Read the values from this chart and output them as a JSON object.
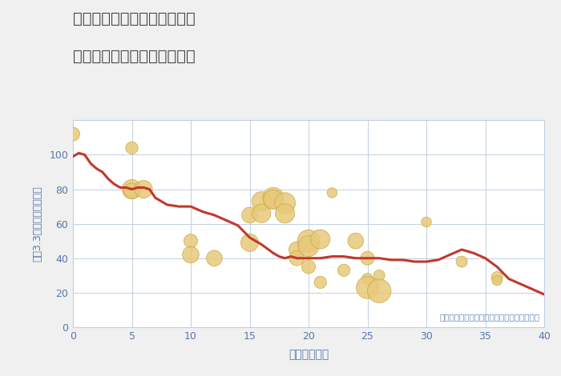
{
  "title_line1": "福岡県久留米市山川沓形町の",
  "title_line2": "築年数別中古マンション価格",
  "xlabel": "築年数（年）",
  "ylabel": "坪（3.3㎡）単価（万円）",
  "annotation": "円の大きさは、取引のあった物件面積を示す",
  "xlim": [
    0,
    40
  ],
  "ylim": [
    0,
    120
  ],
  "yticks": [
    0,
    20,
    40,
    60,
    80,
    100
  ],
  "xticks": [
    0,
    5,
    10,
    15,
    20,
    25,
    30,
    35,
    40
  ],
  "bg_color": "#f0f0f0",
  "plot_bg_color": "#ffffff",
  "grid_color": "#c0cfe0",
  "line_color": "#c0392b",
  "scatter_color": "#e8c97a",
  "scatter_edge_color": "#c8a840",
  "title_color": "#444444",
  "label_color": "#5577aa",
  "annotation_color": "#6688bb",
  "line_x": [
    0,
    0.5,
    1,
    1.5,
    2,
    2.5,
    3,
    3.5,
    4,
    4.5,
    5,
    5.5,
    6,
    6.5,
    7,
    8,
    9,
    10,
    11,
    12,
    13,
    14,
    15,
    15.5,
    16,
    17,
    17.5,
    18,
    18.5,
    19,
    20,
    21,
    22,
    23,
    24,
    25,
    26,
    27,
    28,
    29,
    30,
    31,
    32,
    33,
    34,
    35,
    36,
    37,
    38,
    39,
    40
  ],
  "line_y": [
    99,
    101,
    100,
    95,
    92,
    90,
    86,
    83,
    81,
    81,
    80,
    81,
    81,
    80,
    75,
    71,
    70,
    70,
    67,
    65,
    62,
    59,
    52,
    50,
    48,
    43,
    41,
    40,
    41,
    40,
    40,
    40,
    41,
    41,
    40,
    40,
    40,
    39,
    39,
    38,
    38,
    39,
    42,
    45,
    43,
    40,
    35,
    28,
    25,
    22,
    19
  ],
  "scatter_x": [
    0,
    5,
    5,
    5,
    6,
    10,
    10,
    12,
    15,
    15,
    16,
    16,
    17,
    17,
    18,
    18,
    19,
    19,
    20,
    20,
    20,
    21,
    21,
    22,
    23,
    24,
    25,
    25,
    25,
    26,
    26,
    30,
    33,
    36,
    36
  ],
  "scatter_y": [
    112,
    104,
    80,
    79,
    80,
    50,
    42,
    40,
    65,
    49,
    73,
    66,
    75,
    74,
    72,
    66,
    45,
    40,
    50,
    47,
    35,
    51,
    26,
    78,
    33,
    50,
    28,
    23,
    40,
    30,
    21,
    61,
    38,
    29,
    27
  ],
  "scatter_size": [
    150,
    120,
    300,
    200,
    250,
    150,
    220,
    200,
    200,
    250,
    300,
    280,
    350,
    300,
    350,
    300,
    200,
    180,
    400,
    350,
    150,
    300,
    120,
    80,
    120,
    200,
    100,
    400,
    150,
    100,
    450,
    80,
    100,
    100,
    80
  ]
}
